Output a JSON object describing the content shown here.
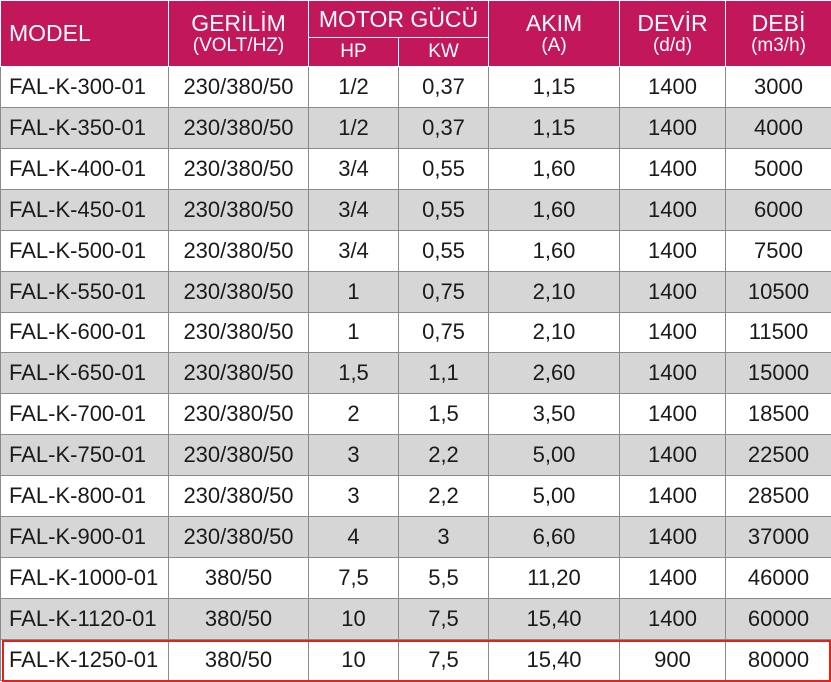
{
  "header": {
    "model": "MODEL",
    "voltage_title": "GERİLİM",
    "voltage_unit": "(VOLT/HZ)",
    "motor_title": "MOTOR GÜCÜ",
    "hp": "HP",
    "kw": "KW",
    "current_title": "AKIM",
    "current_unit": "(A)",
    "speed_title": "DEVİR",
    "speed_unit": "(d/d)",
    "flow_title": "DEBİ",
    "flow_unit": "(m3/h)"
  },
  "rows": [
    [
      "FAL-K-300-01",
      "230/380/50",
      "1/2",
      "0,37",
      "1,15",
      "1400",
      "3000"
    ],
    [
      "FAL-K-350-01",
      "230/380/50",
      "1/2",
      "0,37",
      "1,15",
      "1400",
      "4000"
    ],
    [
      "FAL-K-400-01",
      "230/380/50",
      "3/4",
      "0,55",
      "1,60",
      "1400",
      "5000"
    ],
    [
      "FAL-K-450-01",
      "230/380/50",
      "3/4",
      "0,55",
      "1,60",
      "1400",
      "6000"
    ],
    [
      "FAL-K-500-01",
      "230/380/50",
      "3/4",
      "0,55",
      "1,60",
      "1400",
      "7500"
    ],
    [
      "FAL-K-550-01",
      "230/380/50",
      "1",
      "0,75",
      "2,10",
      "1400",
      "10500"
    ],
    [
      "FAL-K-600-01",
      "230/380/50",
      "1",
      "0,75",
      "2,10",
      "1400",
      "11500"
    ],
    [
      "FAL-K-650-01",
      "230/380/50",
      "1,5",
      "1,1",
      "2,60",
      "1400",
      "15000"
    ],
    [
      "FAL-K-700-01",
      "230/380/50",
      "2",
      "1,5",
      "3,50",
      "1400",
      "18500"
    ],
    [
      "FAL-K-750-01",
      "230/380/50",
      "3",
      "2,2",
      "5,00",
      "1400",
      "22500"
    ],
    [
      "FAL-K-800-01",
      "230/380/50",
      "3",
      "2,2",
      "5,00",
      "1400",
      "28500"
    ],
    [
      "FAL-K-900-01",
      "230/380/50",
      "4",
      "3",
      "6,60",
      "1400",
      "37000"
    ],
    [
      "FAL-K-1000-01",
      "380/50",
      "7,5",
      "5,5",
      "11,20",
      "1400",
      "46000"
    ],
    [
      "FAL-K-1120-01",
      "380/50",
      "10",
      "7,5",
      "15,40",
      "1400",
      "60000"
    ],
    [
      "FAL-K-1250-01",
      "380/50",
      "10",
      "7,5",
      "15,40",
      "900",
      "80000"
    ]
  ],
  "colors": {
    "header_bg": "#c2185b",
    "row_alt_bg": "#d6d6d6",
    "highlight_border": "#e2231a"
  }
}
